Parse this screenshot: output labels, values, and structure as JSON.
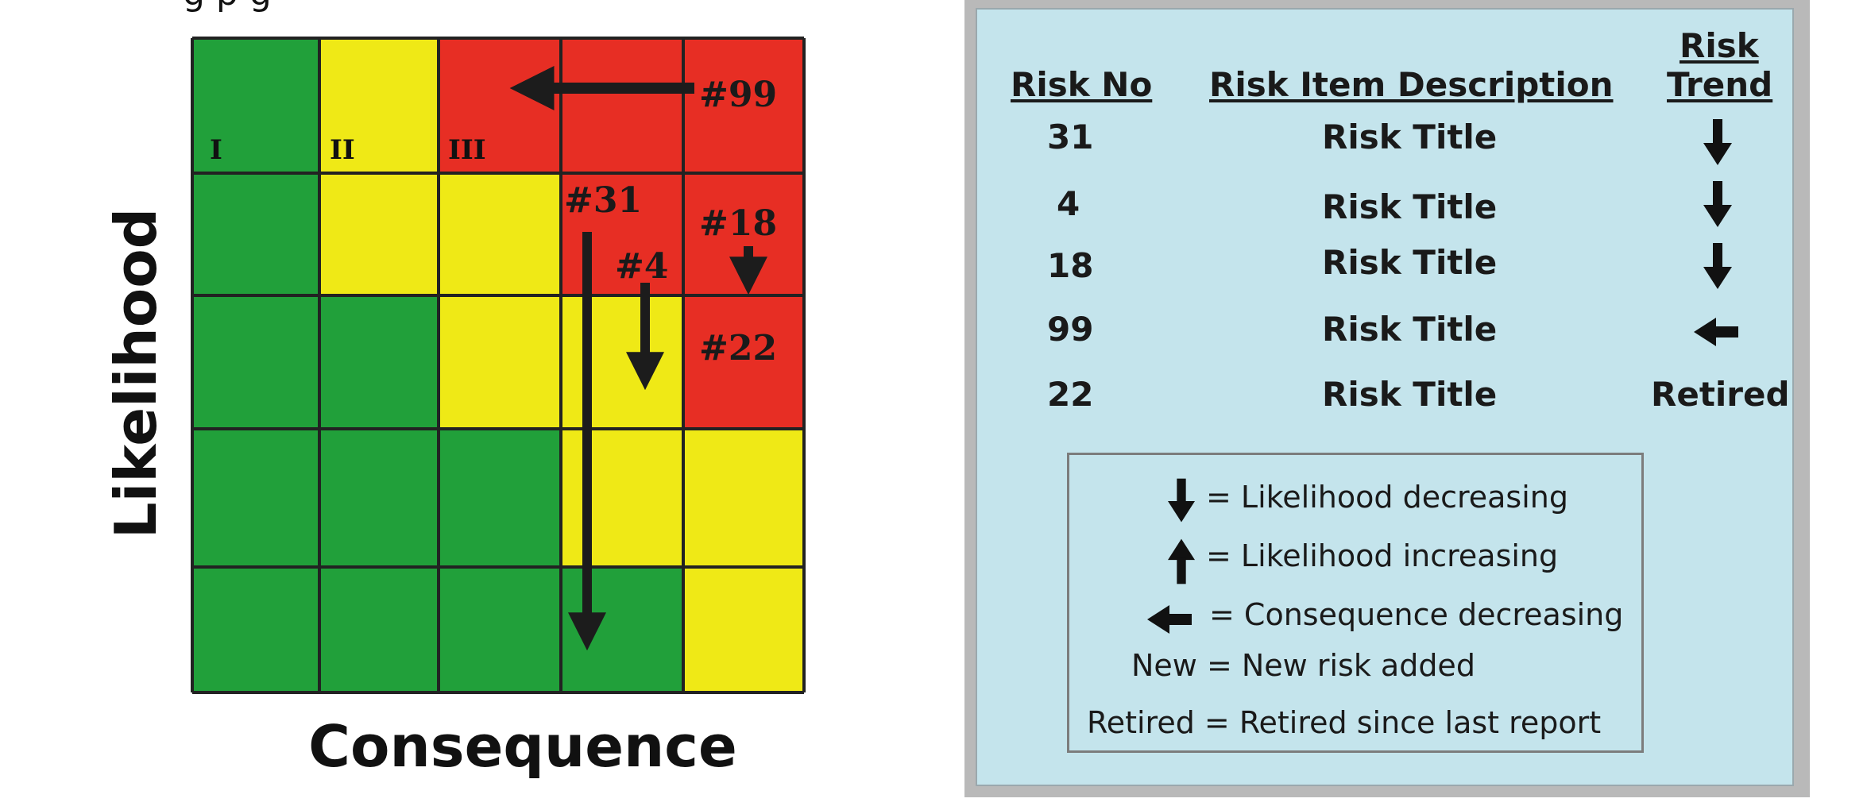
{
  "top_clipped_text": "g             p       g",
  "matrix": {
    "x_axis_label": "Consequence",
    "y_axis_label": "Likelihood",
    "cell_colors": [
      [
        "green",
        "yellow",
        "red",
        "red",
        "red"
      ],
      [
        "green",
        "yellow",
        "yellow",
        "red",
        "red"
      ],
      [
        "green",
        "green",
        "yellow",
        "yellow",
        "red"
      ],
      [
        "green",
        "green",
        "green",
        "yellow",
        "yellow"
      ],
      [
        "green",
        "green",
        "green",
        "green",
        "yellow"
      ]
    ],
    "palette": {
      "green": "#21a03a",
      "yellow": "#efe916",
      "red": "#e72e24",
      "grid": "#222222",
      "arrow": "#1c1c1c"
    },
    "zone_labels": [
      "I",
      "II",
      "III"
    ],
    "risk_labels": [
      "#99",
      "#31",
      "#18",
      "#4",
      "#22"
    ]
  },
  "table": {
    "headers": {
      "risk_no": "Risk No",
      "description": "Risk Item Description",
      "trend_line1": "Risk",
      "trend_line2": "Trend"
    },
    "rows": [
      {
        "risk_no": "31",
        "description": "Risk Title",
        "trend": "down-arrow"
      },
      {
        "risk_no": "4",
        "description": "Risk Title",
        "trend": "down-arrow"
      },
      {
        "risk_no": "18",
        "description": "Risk Title",
        "trend": "down-arrow"
      },
      {
        "risk_no": "99",
        "description": "Risk Title",
        "trend": "left-arrow"
      },
      {
        "risk_no": "22",
        "description": "Risk Title",
        "trend": "Retired"
      }
    ]
  },
  "legend": {
    "down": "= Likelihood decreasing",
    "up": "= Likelihood increasing",
    "left": "= Consequence decreasing",
    "new": "New = New risk added",
    "retired": "Retired = Retired since last report"
  }
}
